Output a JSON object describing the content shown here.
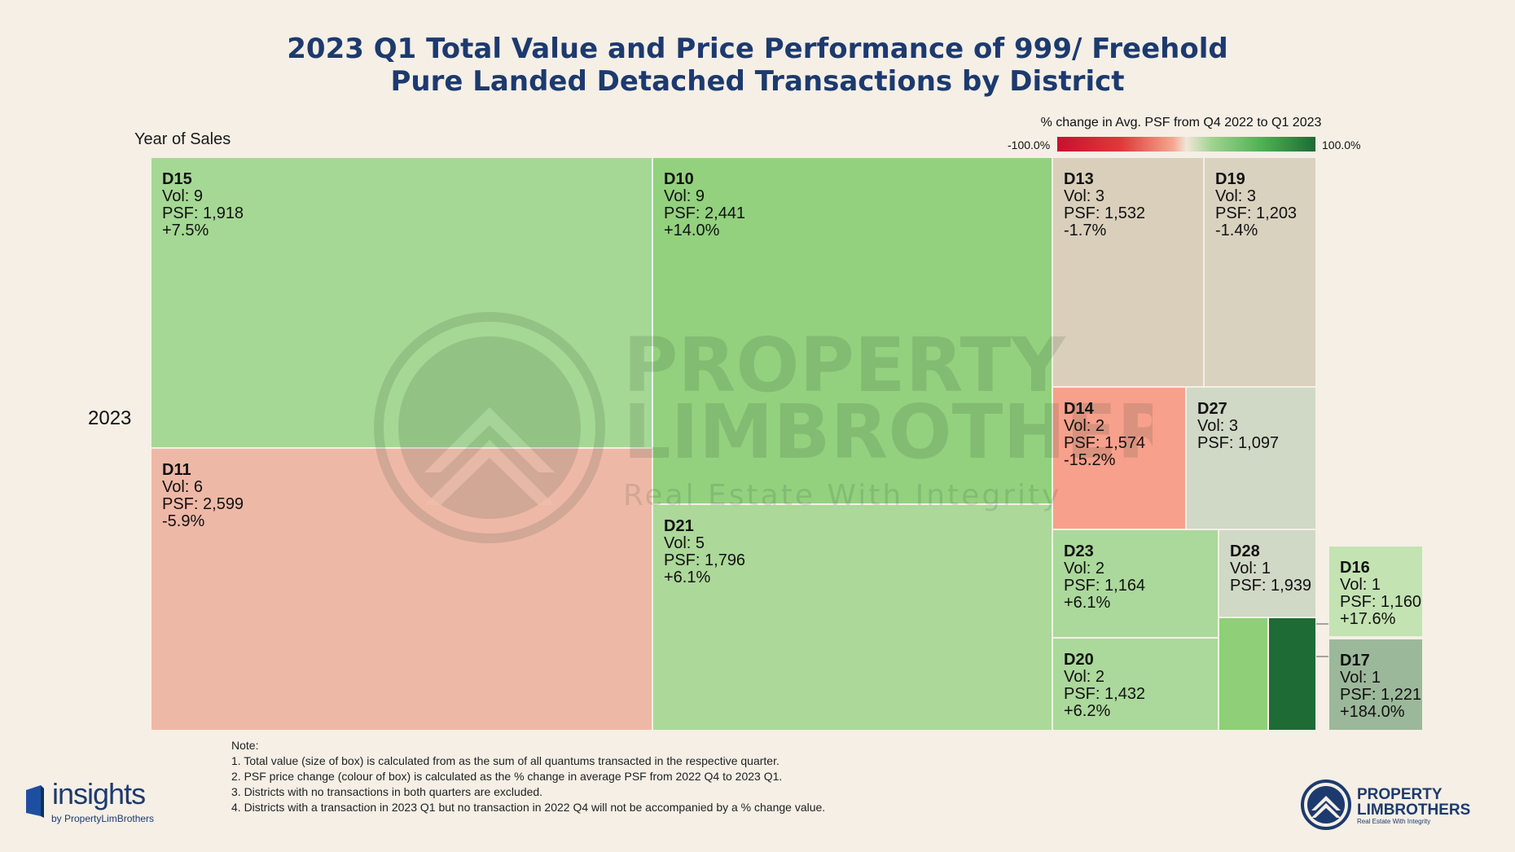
{
  "title_lines": [
    "2023 Q1 Total Value and Price Performance of 999/ Freehold",
    "Pure Landed Detached Transactions by District"
  ],
  "axis": {
    "title": "Year of Sales",
    "year": "2023"
  },
  "legend": {
    "title": "% change in Avg. PSF from Q4 2022 to Q1 2023",
    "min_label": "-100.0%",
    "max_label": "100.0%"
  },
  "colors": {
    "negative_strong": "#c8102e",
    "neutral": "#f0e6d8",
    "positive_strong": "#1e6b35",
    "title": "#1d3a6e",
    "background": "#f5efe6"
  },
  "chart_data": {
    "type": "treemap",
    "title": "2023 Q1 Total Value and Price Performance of 999/ Freehold Pure Landed Detached Transactions by District",
    "size_metric": "Total value (sum of quantums transacted)",
    "color_metric": "% change in Avg. PSF from Q4 2022 to Q1 2023",
    "color_range": [
      -100.0,
      100.0
    ],
    "group": "2023",
    "cells": [
      {
        "district": "D15",
        "vol": "Vol: 9",
        "psf": "PSF: 1,918",
        "change": "+7.5%",
        "change_value": 7.5,
        "color": "#a5d894"
      },
      {
        "district": "D11",
        "vol": "Vol: 6",
        "psf": "PSF: 2,599",
        "change": "-5.9%",
        "change_value": -5.9,
        "color": "#eeb8a6"
      },
      {
        "district": "D10",
        "vol": "Vol: 9",
        "psf": "PSF: 2,441",
        "change": "+14.0%",
        "change_value": 14.0,
        "color": "#93d17e"
      },
      {
        "district": "D21",
        "vol": "Vol: 5",
        "psf": "PSF: 1,796",
        "change": "+6.1%",
        "change_value": 6.1,
        "color": "#acd89a"
      },
      {
        "district": "D13",
        "vol": "Vol: 3",
        "psf": "PSF: 1,532",
        "change": "-1.7%",
        "change_value": -1.7,
        "color": "#d9cfbb"
      },
      {
        "district": "D19",
        "vol": "Vol: 3",
        "psf": "PSF: 1,203",
        "change": "-1.4%",
        "change_value": -1.4,
        "color": "#d9d2bf"
      },
      {
        "district": "D14",
        "vol": "Vol: 2",
        "psf": "PSF: 1,574",
        "change": "-15.2%",
        "change_value": -15.2,
        "color": "#f7a08c"
      },
      {
        "district": "D27",
        "vol": "Vol: 3",
        "psf": "PSF: 1,097",
        "change": "",
        "change_value": null,
        "color": "#d0d8c6"
      },
      {
        "district": "D23",
        "vol": "Vol: 2",
        "psf": "PSF: 1,164",
        "change": "+6.1%",
        "change_value": 6.1,
        "color": "#abd89b"
      },
      {
        "district": "D20",
        "vol": "Vol: 2",
        "psf": "PSF: 1,432",
        "change": "+6.2%",
        "change_value": 6.2,
        "color": "#abd89b"
      },
      {
        "district": "D28",
        "vol": "Vol: 1",
        "psf": "PSF: 1,939",
        "change": "",
        "change_value": null,
        "color": "#d0d8c6"
      },
      {
        "district": "D16",
        "vol": "Vol: 1",
        "psf": "PSF: 1,160",
        "change": "+17.6%",
        "change_value": 17.6,
        "color": "#8ecf78",
        "callout": true
      },
      {
        "district": "D17",
        "vol": "Vol: 1",
        "psf": "PSF: 1,221",
        "change": "+184.0%",
        "change_value": 184.0,
        "color": "#1e6b35",
        "callout": true
      }
    ]
  },
  "notes": [
    "Note:",
    "1. Total value (size of box) is calculated from as the sum of all quantums transacted in the respective quarter.",
    "2. PSF price change (colour of box) is calculated as the % change in average PSF from 2022 Q4 to 2023 Q1.",
    "3. Districts with no transactions in both quarters are excluded.",
    "4. Districts with a transaction in 2023 Q1 but no transaction in 2022 Q4 will not be accompanied by a % change value."
  ],
  "logos": {
    "left_word": "insights",
    "left_by": "by PropertyLimBrothers",
    "right_line1": "PROPERTY",
    "right_line2": "LIMBROTHERS",
    "right_tagline": "Real Estate With Integrity",
    "watermark_line1": "PROPERTY",
    "watermark_line2": "LIMBROTHERS",
    "watermark_tagline": "Real Estate With Integrity"
  }
}
